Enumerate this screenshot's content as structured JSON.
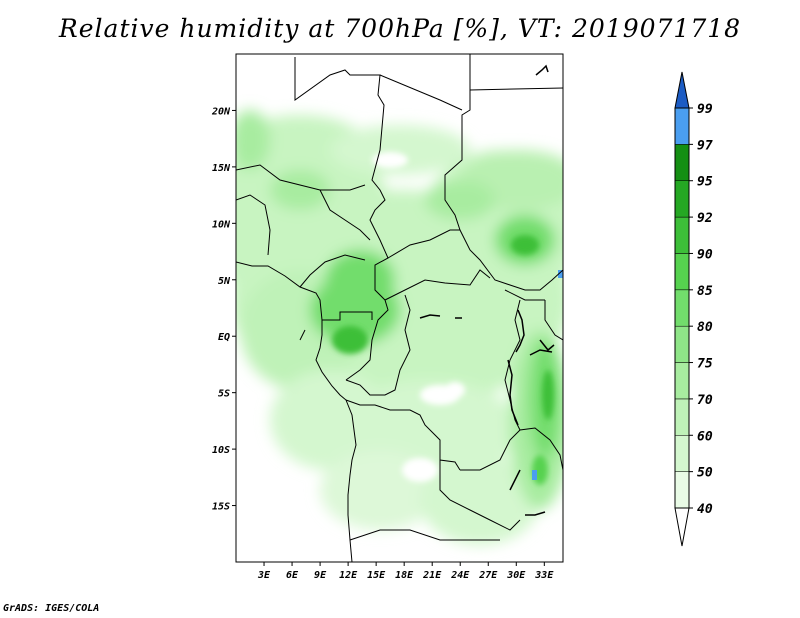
{
  "title": "Relative humidity at 700hPa [%], VT: 2019071718",
  "credit": "GrADS: IGES/COLA",
  "map": {
    "lat_labels": [
      {
        "label": "20N",
        "lat": 20
      },
      {
        "label": "15N",
        "lat": 15
      },
      {
        "label": "10N",
        "lat": 10
      },
      {
        "label": "5N",
        "lat": 5
      },
      {
        "label": "EQ",
        "lat": 0
      },
      {
        "label": "5S",
        "lat": -5
      },
      {
        "label": "10S",
        "lat": -10
      },
      {
        "label": "15S",
        "lat": -15
      }
    ],
    "lon_labels": [
      {
        "label": "3E",
        "lon": 3
      },
      {
        "label": "6E",
        "lon": 6
      },
      {
        "label": "9E",
        "lon": 9
      },
      {
        "label": "12E",
        "lon": 12
      },
      {
        "label": "15E",
        "lon": 15
      },
      {
        "label": "18E",
        "lon": 18
      },
      {
        "label": "21E",
        "lon": 21
      },
      {
        "label": "24E",
        "lon": 24
      },
      {
        "label": "27E",
        "lon": 27
      },
      {
        "label": "30E",
        "lon": 30
      },
      {
        "label": "33E",
        "lon": 33
      }
    ],
    "lon_range": [
      0,
      35
    ],
    "lat_range": [
      -20,
      25
    ]
  },
  "colorbar": {
    "levels": [
      "40",
      "50",
      "60",
      "70",
      "75",
      "80",
      "85",
      "90",
      "92",
      "95",
      "97",
      "99"
    ],
    "colors": [
      "#ffffff",
      "#e9fbe6",
      "#d4f7cf",
      "#bff2b8",
      "#a8eca0",
      "#8fe588",
      "#72dd6c",
      "#56d24f",
      "#3dbf39",
      "#25a823",
      "#148f13",
      "#4a9ef0",
      "#2f78dc",
      "#1c5cc4"
    ]
  }
}
